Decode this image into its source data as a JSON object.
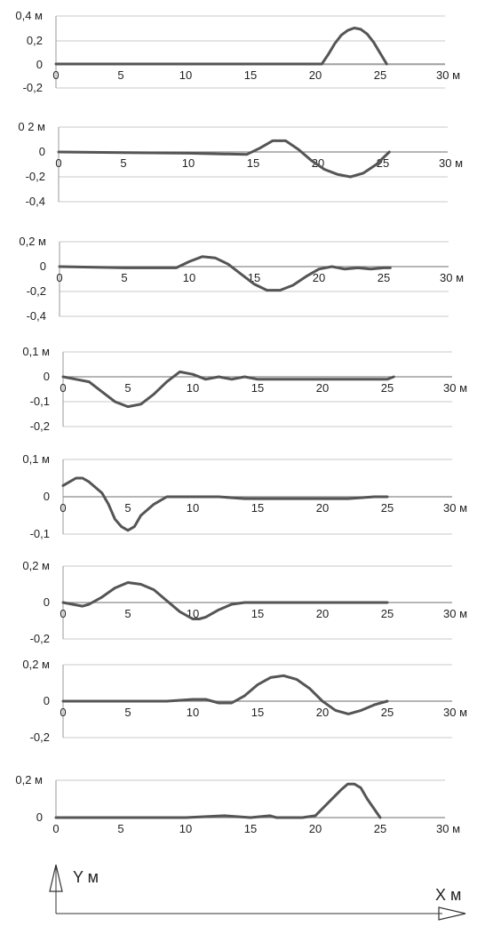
{
  "figure": {
    "y_axis_label": "Y м",
    "x_axis_label": "X м"
  },
  "chart_data": [
    {
      "type": "line",
      "xlim": [
        0,
        30
      ],
      "ylim": [
        -0.2,
        0.4
      ],
      "y_ticks": [
        0.4,
        0.2,
        0,
        -0.2
      ],
      "y_tick_labels": [
        "0,4 м",
        "0,2",
        "0",
        "-0,2"
      ],
      "x_ticks": [
        0,
        5,
        10,
        15,
        20,
        25,
        30
      ],
      "x_tick_labels": [
        "0",
        "5",
        "10",
        "15",
        "20",
        "25",
        "30 м"
      ],
      "grid": true,
      "series": [
        {
          "x": [
            0,
            5,
            10,
            15,
            20,
            20.5,
            21,
            21.5,
            22,
            22.5,
            23,
            23.5,
            24,
            24.5,
            25,
            25.5
          ],
          "y": [
            0,
            0,
            0,
            0,
            0,
            0,
            0.08,
            0.17,
            0.24,
            0.28,
            0.3,
            0.29,
            0.25,
            0.18,
            0.09,
            0
          ]
        }
      ]
    },
    {
      "type": "line",
      "xlim": [
        0,
        30
      ],
      "ylim": [
        -0.4,
        0.2
      ],
      "y_ticks": [
        0.2,
        0,
        -0.2,
        -0.4
      ],
      "y_tick_labels": [
        "0 2 м",
        "0",
        "-0,2",
        "-0,4"
      ],
      "x_ticks": [
        0,
        5,
        10,
        15,
        20,
        25,
        30
      ],
      "x_tick_labels": [
        "0",
        "5",
        "10",
        "15",
        "20",
        "25",
        "30 м"
      ],
      "grid": true,
      "series": [
        {
          "x": [
            0,
            5,
            10,
            14.5,
            15.5,
            16.5,
            17.5,
            18.5,
            19.5,
            20.5,
            21.5,
            22.5,
            23.5,
            24.5,
            25.5
          ],
          "y": [
            0,
            -0.005,
            -0.01,
            -0.02,
            0.03,
            0.09,
            0.09,
            0.02,
            -0.07,
            -0.14,
            -0.18,
            -0.2,
            -0.17,
            -0.1,
            0
          ]
        }
      ]
    },
    {
      "type": "line",
      "xlim": [
        0,
        30
      ],
      "ylim": [
        -0.4,
        0.2
      ],
      "y_ticks": [
        0.2,
        0,
        -0.2,
        -0.4
      ],
      "y_tick_labels": [
        "0,2 м",
        "0",
        "-0,2",
        "-0,4"
      ],
      "x_ticks": [
        0,
        5,
        10,
        15,
        20,
        25,
        30
      ],
      "x_tick_labels": [
        "0",
        "5",
        "10",
        "15",
        "20",
        "25",
        "30 м"
      ],
      "grid": true,
      "series": [
        {
          "x": [
            0,
            5,
            9,
            10,
            11,
            12,
            13,
            14,
            15,
            16,
            17,
            18,
            19,
            20,
            21,
            22,
            23,
            24,
            25,
            25.5
          ],
          "y": [
            0,
            -0.01,
            -0.01,
            0.04,
            0.08,
            0.07,
            0.02,
            -0.06,
            -0.14,
            -0.19,
            -0.19,
            -0.15,
            -0.08,
            -0.02,
            0,
            -0.02,
            -0.01,
            -0.02,
            -0.01,
            -0.01
          ]
        }
      ]
    },
    {
      "type": "line",
      "xlim": [
        0,
        30
      ],
      "ylim": [
        -0.2,
        0.1
      ],
      "y_ticks": [
        0.1,
        0,
        -0.1,
        -0.2
      ],
      "y_tick_labels": [
        "0,1 м",
        "0",
        "-0,1",
        "-0,2"
      ],
      "x_ticks": [
        0,
        5,
        10,
        15,
        20,
        25,
        30
      ],
      "x_tick_labels": [
        "0",
        "5",
        "10",
        "15",
        "20",
        "25",
        "30 м"
      ],
      "grid": true,
      "series": [
        {
          "x": [
            0,
            1,
            2,
            3,
            4,
            5,
            6,
            7,
            8,
            9,
            10,
            11,
            12,
            13,
            14,
            15,
            17,
            19,
            21,
            23,
            25,
            25.5
          ],
          "y": [
            0,
            -0.01,
            -0.02,
            -0.06,
            -0.1,
            -0.12,
            -0.11,
            -0.07,
            -0.02,
            0.02,
            0.01,
            -0.01,
            0,
            -0.01,
            0,
            -0.01,
            -0.01,
            -0.01,
            -0.01,
            -0.01,
            -0.01,
            0
          ]
        }
      ]
    },
    {
      "type": "line",
      "xlim": [
        0,
        30
      ],
      "ylim": [
        -0.1,
        0.1
      ],
      "y_ticks": [
        0.1,
        0,
        -0.1
      ],
      "y_tick_labels": [
        "0,1 м",
        "0",
        "-0,1"
      ],
      "x_ticks": [
        0,
        5,
        10,
        15,
        20,
        25,
        30
      ],
      "x_tick_labels": [
        "0",
        "5",
        "10",
        "15",
        "20",
        "25",
        "30 м"
      ],
      "grid": true,
      "series": [
        {
          "x": [
            0,
            0.5,
            1,
            1.5,
            2,
            3,
            3.5,
            4,
            4.5,
            5,
            5.5,
            6,
            7,
            8,
            9,
            10,
            12,
            14,
            16,
            18,
            20,
            22,
            24,
            25
          ],
          "y": [
            0.03,
            0.04,
            0.05,
            0.05,
            0.04,
            0.01,
            -0.02,
            -0.06,
            -0.08,
            -0.09,
            -0.08,
            -0.05,
            -0.02,
            0,
            0,
            0,
            0,
            -0.005,
            -0.005,
            -0.005,
            -0.005,
            -0.005,
            0,
            0
          ]
        }
      ]
    },
    {
      "type": "line",
      "xlim": [
        0,
        30
      ],
      "ylim": [
        -0.2,
        0.2
      ],
      "y_ticks": [
        0.2,
        0,
        -0.2
      ],
      "y_tick_labels": [
        "0,2 м",
        "0",
        "-0,2"
      ],
      "x_ticks": [
        0,
        5,
        10,
        15,
        20,
        25,
        30
      ],
      "x_tick_labels": [
        "0",
        "5",
        "10",
        "15",
        "20",
        "25",
        "30 м"
      ],
      "grid": true,
      "series": [
        {
          "x": [
            0,
            1.5,
            2,
            3,
            4,
            5,
            6,
            7,
            8,
            9,
            10,
            10.5,
            11,
            12,
            13,
            14,
            15,
            17,
            19,
            21,
            23,
            25
          ],
          "y": [
            0,
            -0.02,
            -0.01,
            0.03,
            0.08,
            0.11,
            0.1,
            0.07,
            0.01,
            -0.05,
            -0.09,
            -0.09,
            -0.08,
            -0.04,
            -0.01,
            0,
            0,
            0,
            0,
            0,
            0,
            0
          ]
        }
      ]
    },
    {
      "type": "line",
      "xlim": [
        0,
        30
      ],
      "ylim": [
        -0.2,
        0.2
      ],
      "y_ticks": [
        0.2,
        0,
        -0.2
      ],
      "y_tick_labels": [
        "0,2 м",
        "0",
        "-0,2"
      ],
      "x_ticks": [
        0,
        5,
        10,
        15,
        20,
        25,
        30
      ],
      "x_tick_labels": [
        "0",
        "5",
        "10",
        "15",
        "20",
        "25",
        "30 м"
      ],
      "grid": true,
      "series": [
        {
          "x": [
            0,
            5,
            8,
            10,
            11,
            12,
            13,
            14,
            15,
            16,
            17,
            18,
            19,
            20,
            21,
            22,
            23,
            24,
            25
          ],
          "y": [
            0,
            0,
            0,
            0.01,
            0.01,
            -0.01,
            -0.01,
            0.03,
            0.09,
            0.13,
            0.14,
            0.12,
            0.07,
            0,
            -0.05,
            -0.07,
            -0.05,
            -0.02,
            0
          ]
        }
      ]
    },
    {
      "type": "line",
      "xlim": [
        0,
        30
      ],
      "ylim": [
        -0.1,
        0.2
      ],
      "y_ticks": [
        0.2,
        0
      ],
      "y_tick_labels": [
        "0,2 м",
        "0"
      ],
      "x_ticks": [
        0,
        5,
        10,
        15,
        20,
        25,
        30
      ],
      "x_tick_labels": [
        "0",
        "5",
        "10",
        "15",
        "20",
        "25",
        "30 м"
      ],
      "grid": true,
      "series": [
        {
          "x": [
            0,
            5,
            10,
            13,
            15,
            16.5,
            17,
            19,
            20,
            21,
            22,
            22.5,
            23,
            23.5,
            24,
            25
          ],
          "y": [
            0,
            0,
            0,
            0.01,
            0,
            0.01,
            0,
            0,
            0.01,
            0.08,
            0.15,
            0.18,
            0.18,
            0.16,
            0.1,
            0
          ]
        }
      ]
    }
  ]
}
